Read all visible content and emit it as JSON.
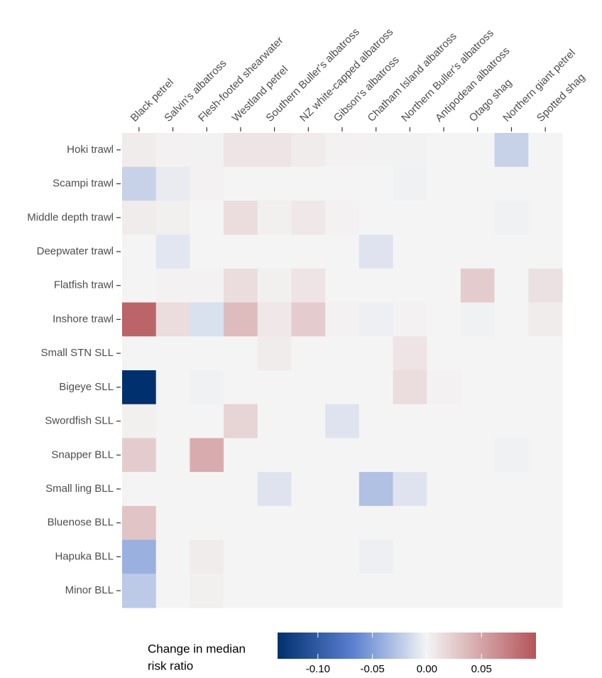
{
  "chart_data": {
    "type": "heatmap",
    "x_categories": [
      "Black petrel",
      "Salvin's albatross",
      "Flesh-footed shearwater",
      "Westland petrel",
      "Southern Buller's albatross",
      "NZ white-capped albatross",
      "Gibson's albatross",
      "Chatham Island albatross",
      "Northern Buller's albatross",
      "Antipodean albatross",
      "Otago shag",
      "Northern giant petrel",
      "Spotted shag"
    ],
    "y_categories": [
      "Hoki trawl",
      "Scampi trawl",
      "Middle depth trawl",
      "Deepwater trawl",
      "Flatfish trawl",
      "Inshore trawl",
      "Small STN SLL",
      "Bigeye SLL",
      "Swordfish SLL",
      "Snapper BLL",
      "Small ling BLL",
      "Bluenose BLL",
      "Hapuka BLL",
      "Minor BLL"
    ],
    "values": [
      [
        0.005,
        0.002,
        0.001,
        0.01,
        0.01,
        0.005,
        0.002,
        0.001,
        0.001,
        0,
        0,
        -0.02,
        0
      ],
      [
        -0.02,
        -0.005,
        0.002,
        0,
        0,
        0,
        0,
        0,
        -0.002,
        0,
        0,
        0,
        0
      ],
      [
        0.005,
        0.003,
        0,
        0.015,
        0.003,
        0.008,
        0.002,
        0,
        0,
        0,
        0,
        -0.002,
        0
      ],
      [
        0,
        -0.008,
        0,
        0,
        0,
        0,
        0,
        -0.01,
        0,
        0,
        0,
        0,
        0
      ],
      [
        0,
        0.002,
        0.002,
        0.015,
        0.003,
        0.01,
        0,
        0,
        0,
        0,
        0.025,
        0,
        0.012
      ],
      [
        0.09,
        0.015,
        -0.012,
        0.035,
        0.008,
        0.025,
        0.002,
        -0.003,
        0.002,
        0,
        -0.002,
        0,
        0.005
      ],
      [
        0,
        0,
        0,
        0,
        0.005,
        0,
        0,
        0,
        0.01,
        0,
        0,
        0,
        0
      ],
      [
        -0.137,
        0,
        -0.002,
        0,
        0,
        0,
        0,
        0,
        0.015,
        0.002,
        0,
        0,
        0
      ],
      [
        0.003,
        0,
        0,
        0.02,
        0,
        0,
        -0.01,
        0,
        0,
        0,
        0,
        0,
        0
      ],
      [
        0.025,
        0,
        0.045,
        0,
        0,
        0,
        0,
        0,
        0,
        0,
        0,
        -0.002,
        0
      ],
      [
        0,
        0,
        0,
        0,
        -0.01,
        0,
        0,
        -0.03,
        -0.01,
        0,
        0,
        0,
        0
      ],
      [
        0.03,
        0,
        0,
        0,
        0,
        0,
        0,
        0,
        0,
        0,
        0,
        0,
        0
      ],
      [
        -0.04,
        0,
        0.005,
        0,
        0,
        0,
        0,
        -0.003,
        0,
        0,
        0,
        0,
        0
      ],
      [
        -0.025,
        0,
        0.003,
        0,
        0,
        0,
        0,
        0,
        0,
        0,
        0,
        0,
        0
      ]
    ],
    "legend_title": [
      "Change in median",
      "risk ratio"
    ],
    "clim": [
      -0.137,
      0.1
    ],
    "cticks": [
      {
        "value": -0.1,
        "label": "-0.10"
      },
      {
        "value": -0.05,
        "label": "-0.05"
      },
      {
        "value": 0,
        "label": "0.00"
      },
      {
        "value": 0.05,
        "label": "0.05"
      }
    ],
    "colors": [
      "#00306e",
      "#5a7fd0",
      "#f4f4f4",
      "#b5545a"
    ]
  }
}
